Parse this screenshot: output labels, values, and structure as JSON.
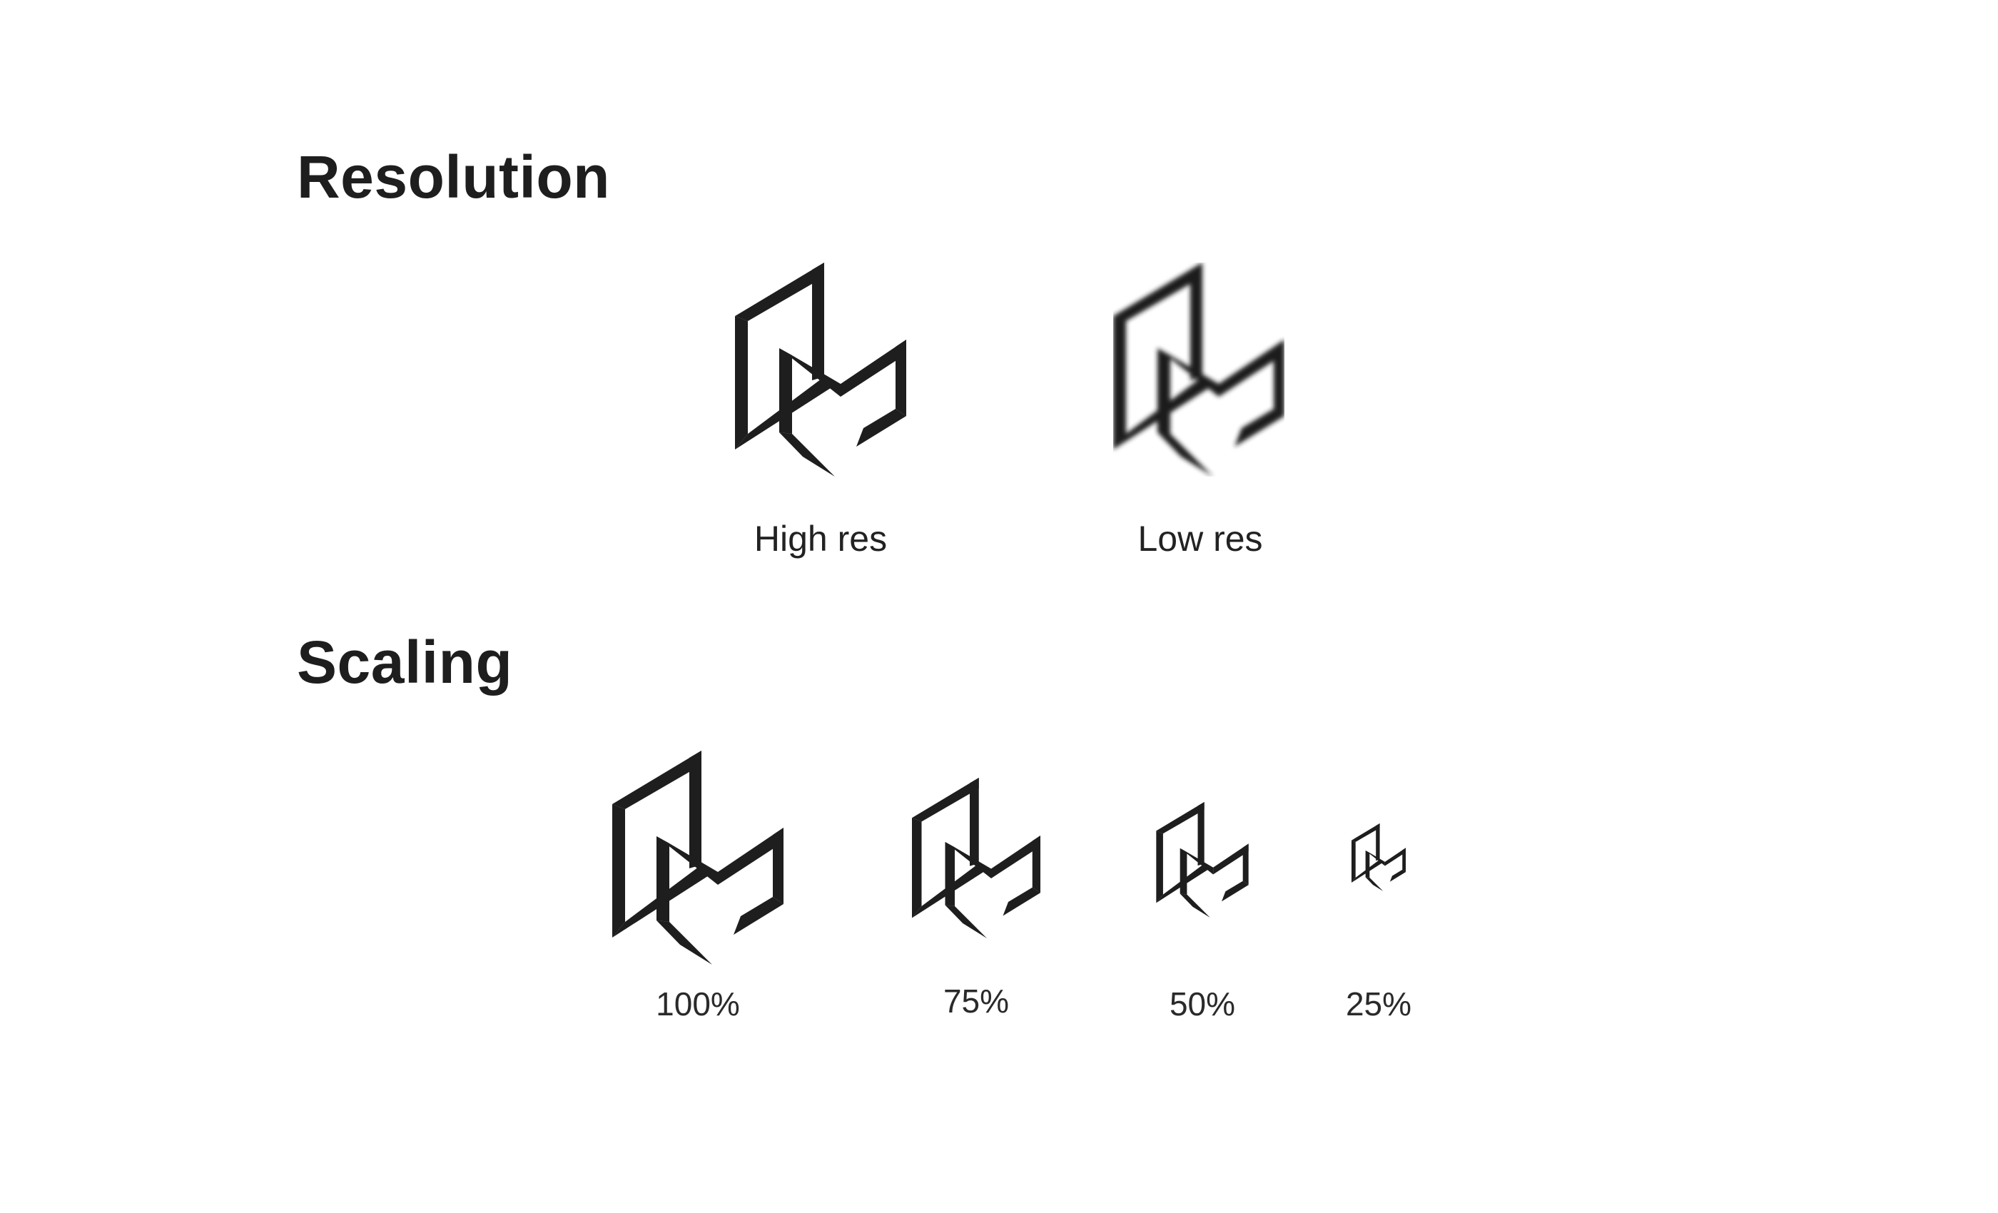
{
  "resolution": {
    "title": "Resolution",
    "items": [
      {
        "label": "High res",
        "icon": "brand-logo-mark-icon"
      },
      {
        "label": "Low res",
        "icon": "brand-logo-mark-blurred-icon"
      }
    ]
  },
  "scaling": {
    "title": "Scaling",
    "items": [
      {
        "label": "100%",
        "scale": 1.0
      },
      {
        "label": "75%",
        "scale": 0.75
      },
      {
        "label": "50%",
        "scale": 0.5
      },
      {
        "label": "25%",
        "scale": 0.25
      }
    ]
  },
  "colors": {
    "background": "#ffffff",
    "mark": "#1e1e1e",
    "heading": "#1e1e1e",
    "caption": "#222222"
  }
}
